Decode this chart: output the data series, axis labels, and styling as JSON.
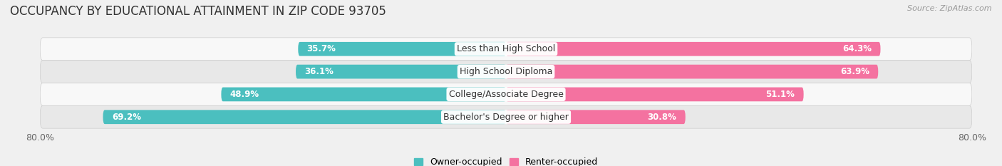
{
  "title": "OCCUPANCY BY EDUCATIONAL ATTAINMENT IN ZIP CODE 93705",
  "source": "Source: ZipAtlas.com",
  "categories": [
    "Less than High School",
    "High School Diploma",
    "College/Associate Degree",
    "Bachelor's Degree or higher"
  ],
  "owner_pct": [
    35.7,
    36.1,
    48.9,
    69.2
  ],
  "renter_pct": [
    64.3,
    63.9,
    51.1,
    30.8
  ],
  "owner_color": "#4BBFBF",
  "renter_color": "#F472A0",
  "owner_color_light": "#85D5D5",
  "renter_color_light": "#F8A8C8",
  "bar_height": 0.62,
  "xlim": [
    -80,
    80
  ],
  "background_color": "#f0f0f0",
  "row_bg_light": "#f8f8f8",
  "row_bg_dark": "#e8e8e8",
  "title_fontsize": 12,
  "source_fontsize": 8,
  "label_fontsize": 9,
  "pct_fontsize": 8.5,
  "legend_fontsize": 9,
  "inside_threshold": 15
}
